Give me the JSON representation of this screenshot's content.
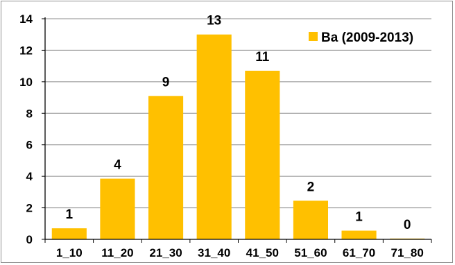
{
  "chart_data": {
    "type": "bar",
    "categories": [
      "1_10",
      "11_20",
      "21_30",
      "31_40",
      "41_50",
      "51_60",
      "61_70",
      "71_80"
    ],
    "series": [
      {
        "name": "Ba (2009-2013)",
        "values": [
          0.7,
          3.85,
          9.1,
          13,
          10.7,
          2.45,
          0.55,
          0.05
        ],
        "labels": [
          "1",
          "4",
          "9",
          "13",
          "11",
          "2",
          "1",
          "0"
        ]
      }
    ],
    "ylim": [
      0,
      14
    ],
    "yticks": [
      "0",
      "2",
      "4",
      "6",
      "8",
      "10",
      "12",
      "14"
    ],
    "grid": true,
    "legend": "top-right",
    "bar_color": "#FFC000",
    "grid_color": "#8c8c8c",
    "title": "",
    "xlabel": "",
    "ylabel": ""
  }
}
